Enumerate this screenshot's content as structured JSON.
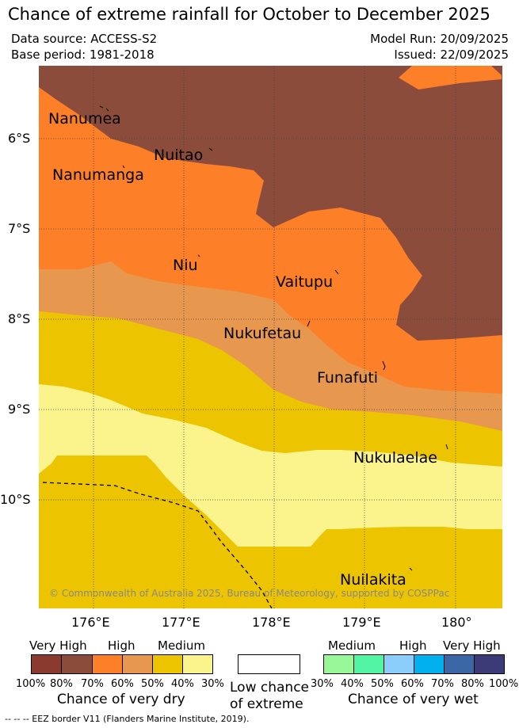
{
  "title": "Chance of extreme rainfall for October to December 2025",
  "meta": {
    "data_source": "Data source: ACCESS-S2",
    "base_period": "Base period: 1981-2018",
    "model_run": "Model Run: 20/09/2025",
    "issued": "Issued: 22/09/2025"
  },
  "map": {
    "lat_labels": [
      "6°S",
      "7°S",
      "8°S",
      "9°S",
      "10°S"
    ],
    "lon_labels": [
      "176°E",
      "177°E",
      "178°E",
      "179°E",
      "180°"
    ],
    "islands": {
      "nanumea": "Nanumea",
      "nuitao": "Nuitao",
      "nanumanga": "Nanumanga",
      "niu": "Niu",
      "vaitupu": "Vaitupu",
      "nukufetau": "Nukufetau",
      "funafuti": "Funafuti",
      "nukulaelae": "Nukulaelae",
      "nuilakita": "Nuilakita"
    },
    "copyright": "© Commonwealth of Australia 2025, Bureau of Meteorology, supported by COSPPac"
  },
  "legend": {
    "dry": {
      "categories": [
        "Very High",
        "High",
        "Medium"
      ],
      "percents": [
        "100%",
        "80%",
        "70%",
        "60%",
        "50%",
        "40%",
        "30%"
      ],
      "colors": [
        "#8b3a2f",
        "#8b4c3b",
        "#fd7f27",
        "#e8974e",
        "#ecc400",
        "#fbf38c"
      ],
      "caption": "Chance of very dry"
    },
    "extreme": {
      "caption_line1": "Low chance",
      "caption_line2": "of extreme",
      "color": "#ffffff"
    },
    "wet": {
      "categories": [
        "Medium",
        "High",
        "Very High"
      ],
      "percents": [
        "30%",
        "40%",
        "50%",
        "60%",
        "70%",
        "80%",
        "100%"
      ],
      "colors": [
        "#98f898",
        "#52f5a3",
        "#8bcdfb",
        "#00b0ef",
        "#3a66a6",
        "#3c3b78"
      ],
      "caption": "Chance of very wet"
    }
  },
  "footnote": "-- -- -- EEZ border V11 (Flanders Marine Institute, 2019).",
  "colors": {
    "very_high_dry": "#8b4c3b",
    "high_dry": "#fd7f27",
    "medium_high_dry": "#e8974e",
    "medium_dry": "#ecc400",
    "low_dry": "#fbf38c"
  }
}
